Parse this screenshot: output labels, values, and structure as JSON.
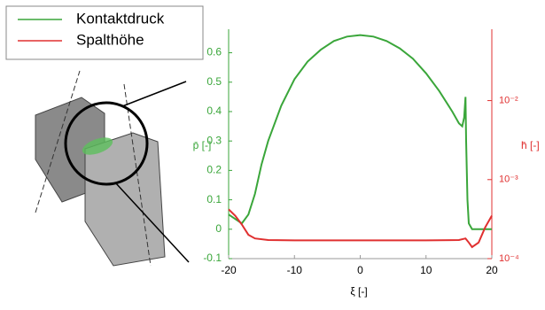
{
  "chart_data": {
    "type": "line",
    "xlabel": "ξ [-]",
    "ylabel": "p̄ [-]",
    "y2label": "h̄ [-]",
    "xlim": [
      -20,
      20
    ],
    "xticks": [
      -20,
      -10,
      0,
      10,
      20
    ],
    "ylim": [
      -0.1,
      0.68
    ],
    "yticks": [
      -0.1,
      0,
      0.1,
      0.2,
      0.3,
      0.4,
      0.5,
      0.6
    ],
    "y2lim": [
      0.0001,
      0.08
    ],
    "y2scale": "log",
    "y2ticks": [
      {
        "value": 0.0001,
        "label": "10⁻⁴"
      },
      {
        "value": 0.001,
        "label": "10⁻³"
      },
      {
        "value": 0.01,
        "label": "10⁻²"
      }
    ],
    "legend": "upper left",
    "series": [
      {
        "name": "Kontaktdruck",
        "color": "#3aa63a",
        "x": [
          -20,
          -18,
          -17,
          -16,
          -15,
          -14,
          -12,
          -10,
          -8,
          -6,
          -4,
          -2,
          0,
          2,
          4,
          6,
          8,
          10,
          12,
          14,
          15,
          15.5,
          15.8,
          16,
          16.1,
          16.3,
          16.5,
          17,
          20
        ],
        "values": [
          0.05,
          0.02,
          0.05,
          0.12,
          0.22,
          0.3,
          0.42,
          0.51,
          0.57,
          0.61,
          0.64,
          0.655,
          0.66,
          0.655,
          0.64,
          0.615,
          0.58,
          0.53,
          0.47,
          0.4,
          0.36,
          0.35,
          0.38,
          0.45,
          0.3,
          0.1,
          0.02,
          0,
          0
        ]
      },
      {
        "name": "Spalthöhe",
        "color": "#e03030",
        "axis": "y2",
        "x": [
          -20,
          -19,
          -18,
          -17,
          -16,
          -14,
          -10,
          0,
          10,
          15,
          16,
          16.5,
          17,
          18,
          19,
          20
        ],
        "values": [
          0.00042,
          0.00035,
          0.00027,
          0.0002,
          0.00018,
          0.000172,
          0.00017,
          0.00017,
          0.00017,
          0.000172,
          0.00018,
          0.00016,
          0.00014,
          0.00016,
          0.00025,
          0.00035
        ]
      }
    ]
  }
}
